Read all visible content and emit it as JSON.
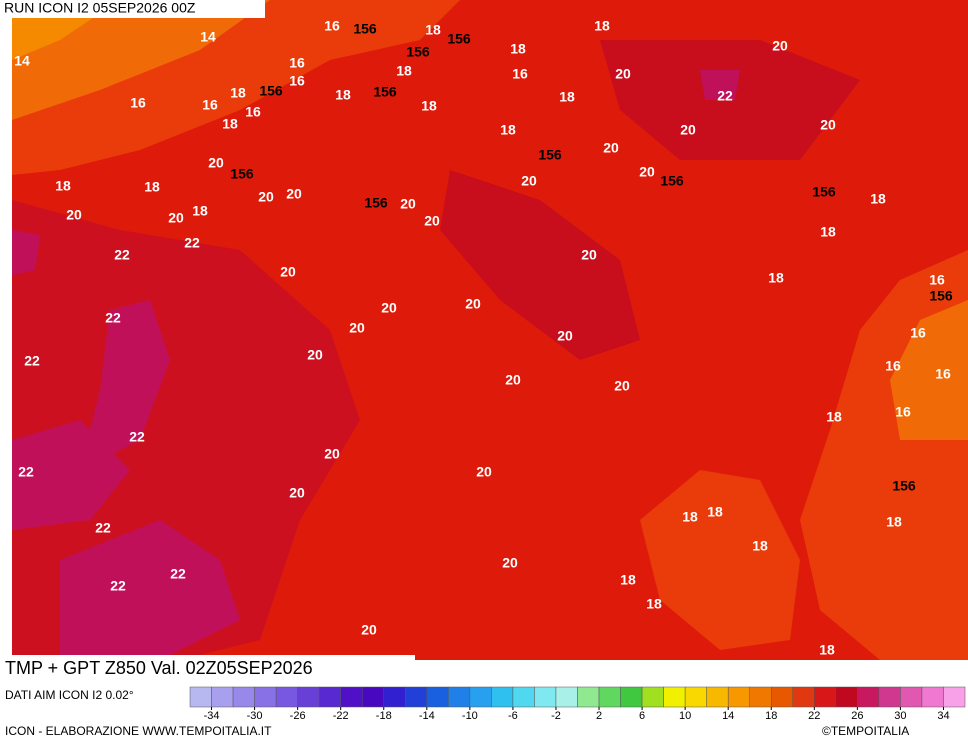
{
  "header": {
    "run": "RUN ICON I2 05SEP2026 00Z"
  },
  "title": "TMP + GPT Z850 Val. 02Z05SEP2026",
  "source": "DATI AIM ICON I2 0.02°",
  "footer": {
    "left": "ICON - ELABORAZIONE WWW.TEMPOITALIA.IT",
    "right": "©TEMPOITALIA"
  },
  "colorbar": {
    "colors": [
      "#b8b8f0",
      "#a8a0ee",
      "#9888ea",
      "#8870e6",
      "#7858e0",
      "#6840d8",
      "#5828d0",
      "#5010c8",
      "#4808c0",
      "#3020d0",
      "#2040d8",
      "#1860e0",
      "#2080e8",
      "#28a0f0",
      "#30c0f0",
      "#50d8f0",
      "#80e8f0",
      "#a8f0e8",
      "#90e890",
      "#60d860",
      "#40c840",
      "#a0e020",
      "#f0f000",
      "#f8d800",
      "#f8b800",
      "#f89800",
      "#f07800",
      "#e85800",
      "#e03810",
      "#d81818",
      "#c00820",
      "#c81860",
      "#d03890",
      "#e058b0",
      "#f078d0",
      "#f8a0e8"
    ],
    "ticks": [
      -34,
      -30,
      -26,
      -22,
      -18,
      -14,
      -10,
      -6,
      -2,
      2,
      6,
      10,
      14,
      18,
      22,
      26,
      30,
      34
    ]
  },
  "map": {
    "labels": [
      14,
      14,
      16,
      16,
      16,
      16,
      16,
      16,
      16,
      16,
      16,
      16,
      16,
      16,
      18,
      18,
      18,
      18,
      18,
      18,
      18,
      18,
      18,
      18,
      18,
      18,
      18,
      18,
      18,
      18,
      18,
      18,
      18,
      18,
      18,
      18,
      18,
      18,
      20,
      20,
      20,
      20,
      20,
      20,
      20,
      20,
      20,
      20,
      20,
      20,
      20,
      20,
      20,
      20,
      20,
      20,
      20,
      20,
      20,
      20,
      20,
      20,
      20,
      20,
      20,
      20,
      22,
      22,
      22,
      22,
      22,
      22,
      22,
      22,
      22,
      22,
      156,
      156,
      156,
      156,
      156,
      156,
      156,
      156,
      156,
      156,
      156,
      156
    ]
  }
}
